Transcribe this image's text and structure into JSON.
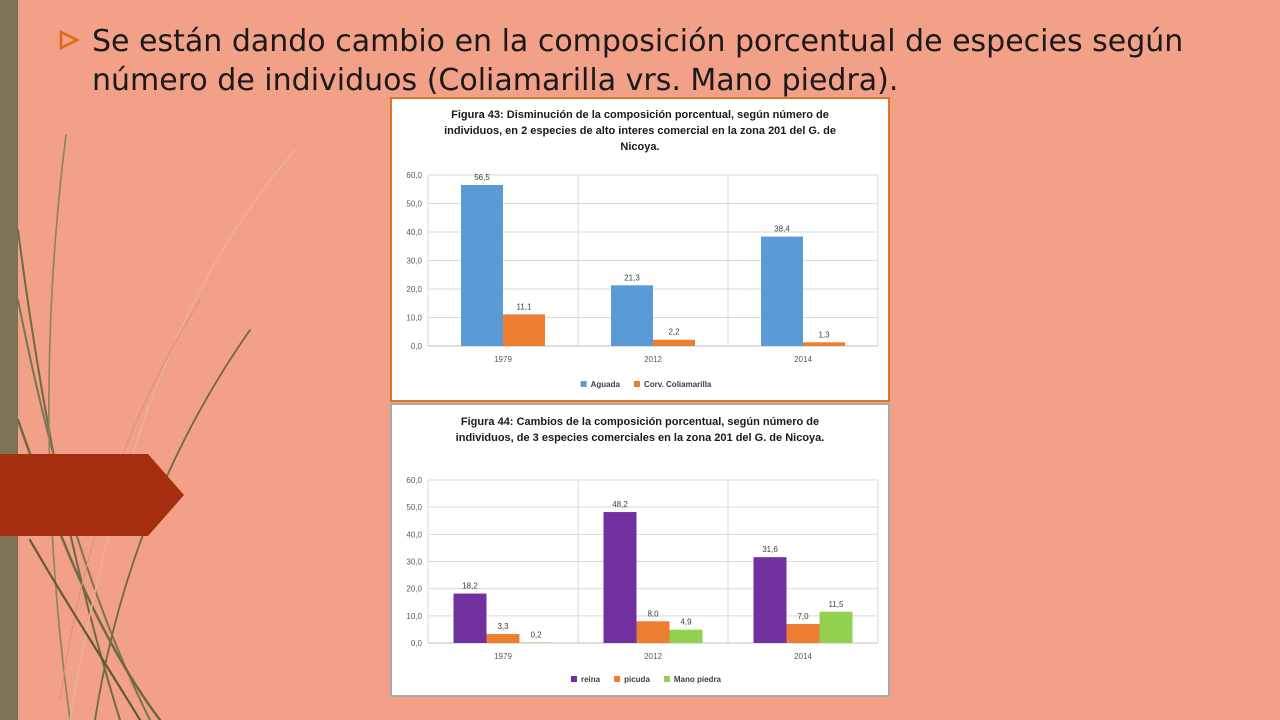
{
  "slide": {
    "bullet_text": "Se están dando cambio en la composición porcentual de especies según número de individuos (Coliamarilla vrs. Mano piedra).",
    "colors": {
      "background": "#F2A088",
      "left_bar": "#7C7256",
      "tab": "#A52E10",
      "bullet": "#E06A1A"
    }
  },
  "chart_data": [
    {
      "type": "bar",
      "title": "Figura 43: Disminución de la composición porcentual, según número de individuos, en 2 especies de alto interes comercial en la zona 201 del G. de Nicoya.",
      "categories": [
        "1979",
        "2012",
        "2014"
      ],
      "series": [
        {
          "name": "Aguada",
          "color": "#5B9BD5",
          "values": [
            56.5,
            21.3,
            38.4
          ],
          "labels": [
            "56,5",
            "21,3",
            "38,4"
          ]
        },
        {
          "name": "Corv. Coliamarilla",
          "color": "#ED7D31",
          "values": [
            11.1,
            2.2,
            1.3
          ],
          "labels": [
            "11,1",
            "2,2",
            "1,3"
          ]
        }
      ],
      "ylim": [
        0,
        60
      ],
      "yticks": [
        "0,0",
        "10,0",
        "20,0",
        "30,0",
        "40,0",
        "50,0",
        "60,0"
      ],
      "grid": true,
      "legend": "bottom"
    },
    {
      "type": "bar",
      "title": "Figura 44: Cambios de la composición porcentual, según número de individuos, de 3 especies comerciales en la zona 201 del G. de Nicoya.",
      "categories": [
        "1979",
        "2012",
        "2014"
      ],
      "series": [
        {
          "name": "reina",
          "color": "#7030A0",
          "values": [
            18.2,
            48.2,
            31.6
          ],
          "labels": [
            "18,2",
            "48,2",
            "31,6"
          ]
        },
        {
          "name": "picuda",
          "color": "#ED7D31",
          "values": [
            3.3,
            8.0,
            7.0
          ],
          "labels": [
            "3,3",
            "8,0",
            "7,0"
          ]
        },
        {
          "name": "Mano piedra",
          "color": "#92D050",
          "values": [
            0.2,
            4.9,
            11.5
          ],
          "labels": [
            "0,2",
            "4,9",
            "11,5"
          ]
        }
      ],
      "ylim": [
        0,
        60
      ],
      "yticks": [
        "0,0",
        "10,0",
        "20,0",
        "30,0",
        "40,0",
        "50,0",
        "60,0"
      ],
      "grid": true,
      "legend": "bottom"
    }
  ]
}
